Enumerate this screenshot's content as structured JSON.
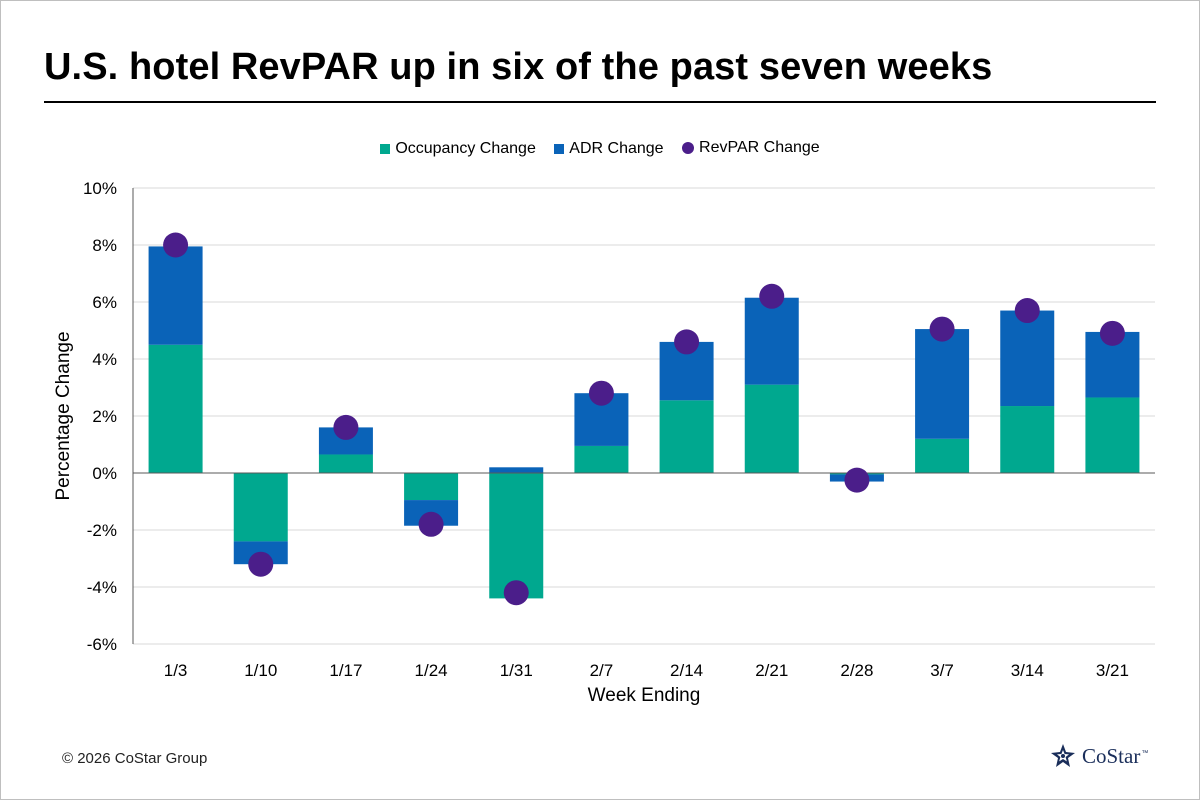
{
  "header": {
    "title": "U.S. hotel RevPAR up in six of the past seven weeks"
  },
  "footer": {
    "copyright": "© 2026 CoStar Group"
  },
  "logo": {
    "text": "CoStar",
    "tm": "™",
    "icon": "costar-star-icon"
  },
  "colors": {
    "occupancy": "#00a88f",
    "adr": "#0a63b8",
    "revpar": "#4b1e8a",
    "grid": "#d9d9d9",
    "axis": "#595959"
  },
  "chart_data": {
    "type": "bar",
    "subtype": "stacked-bar-with-markers",
    "title": "",
    "xlabel": "Week Ending",
    "ylabel": "Percentage Change",
    "ylim": [
      -6,
      10
    ],
    "yticks": [
      10,
      8,
      6,
      4,
      2,
      0,
      -2,
      -4,
      -6
    ],
    "ytick_labels": [
      "10%",
      "8%",
      "6%",
      "4%",
      "2%",
      "0%",
      "-2%",
      "-4%",
      "-6%"
    ],
    "grid": true,
    "legend_position": "top-center",
    "categories": [
      "1/3",
      "1/10",
      "1/17",
      "1/24",
      "1/31",
      "2/7",
      "2/14",
      "2/21",
      "2/28",
      "3/7",
      "3/14",
      "3/21"
    ],
    "series": [
      {
        "name": "Occupancy Change",
        "kind": "bar",
        "values": [
          4.5,
          -2.4,
          0.65,
          -0.95,
          -4.4,
          0.95,
          2.55,
          3.1,
          -0.05,
          1.2,
          2.35,
          2.65
        ]
      },
      {
        "name": "ADR Change",
        "kind": "bar",
        "values": [
          3.45,
          -0.8,
          0.95,
          -0.9,
          0.2,
          1.85,
          2.05,
          3.05,
          -0.25,
          3.85,
          3.35,
          2.3
        ]
      },
      {
        "name": "RevPAR Change",
        "kind": "marker",
        "values": [
          8.0,
          -3.2,
          1.6,
          -1.8,
          -4.2,
          2.8,
          4.6,
          6.2,
          -0.25,
          5.05,
          5.7,
          4.9
        ]
      }
    ]
  }
}
